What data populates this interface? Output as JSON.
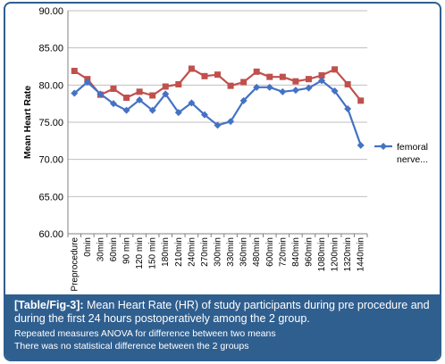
{
  "chart_data": {
    "type": "line",
    "title": "",
    "xlabel": "",
    "ylabel": "Mean Heart Rate",
    "ylim": [
      60,
      90
    ],
    "yticks": [
      "60.00",
      "65.00",
      "70.00",
      "75.00",
      "80.00",
      "85.00",
      "90.00"
    ],
    "grid": "horizontal",
    "legend_position": "right",
    "categories": [
      "Preprocedure",
      "0min",
      "30min",
      "60min",
      "90 min",
      "120 min",
      "150 min",
      "180min",
      "210min",
      "240min",
      "270min",
      "300min",
      "330min",
      "360min",
      "480min",
      "600min",
      "720min",
      "840min",
      "960min",
      "1080min",
      "1200min",
      "1320min",
      "1440min"
    ],
    "series": [
      {
        "name": "femoral nerve...",
        "color": "#4472c4",
        "marker": "diamond",
        "values": [
          78.9,
          80.4,
          78.8,
          77.5,
          76.6,
          78.0,
          76.6,
          78.8,
          76.3,
          77.6,
          76.0,
          74.6,
          75.1,
          77.9,
          79.7,
          79.7,
          79.1,
          79.3,
          79.6,
          80.6,
          79.2,
          76.8,
          71.9
        ]
      },
      {
        "name": "",
        "color": "#c0504d",
        "marker": "square",
        "values": [
          81.9,
          80.8,
          78.7,
          79.5,
          78.3,
          79.1,
          78.6,
          79.8,
          80.1,
          82.2,
          81.2,
          81.4,
          79.9,
          80.4,
          81.8,
          81.1,
          81.1,
          80.5,
          80.8,
          81.3,
          82.1,
          80.1,
          77.9
        ]
      }
    ]
  },
  "caption": {
    "ref": "[Table/Fig-3]:",
    "text": " Mean Heart Rate (HR) of study participants during pre procedure and during the first 24 hours postoperatively among the 2 group.",
    "note1": "Repeated measures ANOVA for difference between two means",
    "note2": "There was no statistical difference between the 2 groups"
  }
}
